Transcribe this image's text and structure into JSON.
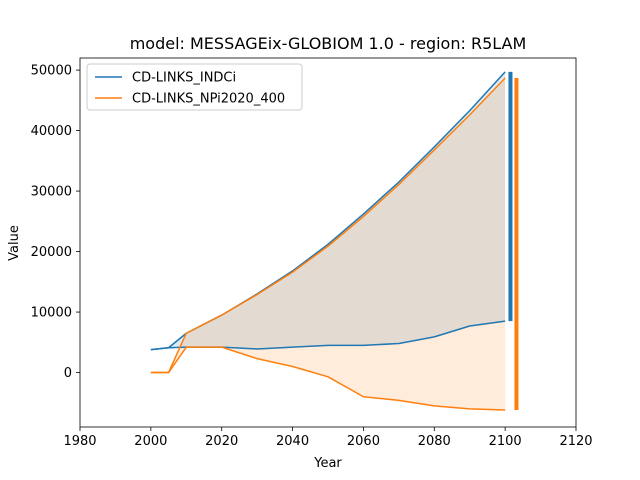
{
  "chart_data": {
    "type": "line",
    "title": "model: MESSAGEix-GLOBIOM 1.0 - region: R5LAM",
    "xlabel": "Year",
    "ylabel": "Value",
    "xlim": [
      1980,
      2120
    ],
    "ylim": [
      -9000,
      52000
    ],
    "xticks": [
      1980,
      2000,
      2020,
      2040,
      2060,
      2080,
      2100,
      2120
    ],
    "yticks": [
      0,
      10000,
      20000,
      30000,
      40000,
      50000
    ],
    "x": [
      2000,
      2005,
      2010,
      2020,
      2030,
      2040,
      2050,
      2060,
      2070,
      2080,
      2090,
      2100
    ],
    "legend_position": "top-left",
    "series": [
      {
        "name": "CD-LINKS_INDCi",
        "color": "#1f77b4",
        "upper": [
          3800,
          4100,
          6500,
          9500,
          13000,
          16800,
          21200,
          26200,
          31500,
          37300,
          43300,
          49700
        ],
        "lower": [
          3800,
          4100,
          4200,
          4200,
          3900,
          4200,
          4500,
          4500,
          4800,
          5900,
          7700,
          8500
        ]
      },
      {
        "name": "CD-LINKS_NPi2020_400",
        "color": "#ff7f0e",
        "upper": [
          0,
          0,
          6500,
          9500,
          12900,
          16600,
          20900,
          25800,
          31100,
          36800,
          42600,
          48700
        ],
        "lower": [
          0,
          0,
          4200,
          4200,
          2300,
          1000,
          -700,
          -4000,
          -4600,
          -5500,
          -6000,
          -6200
        ]
      }
    ]
  }
}
